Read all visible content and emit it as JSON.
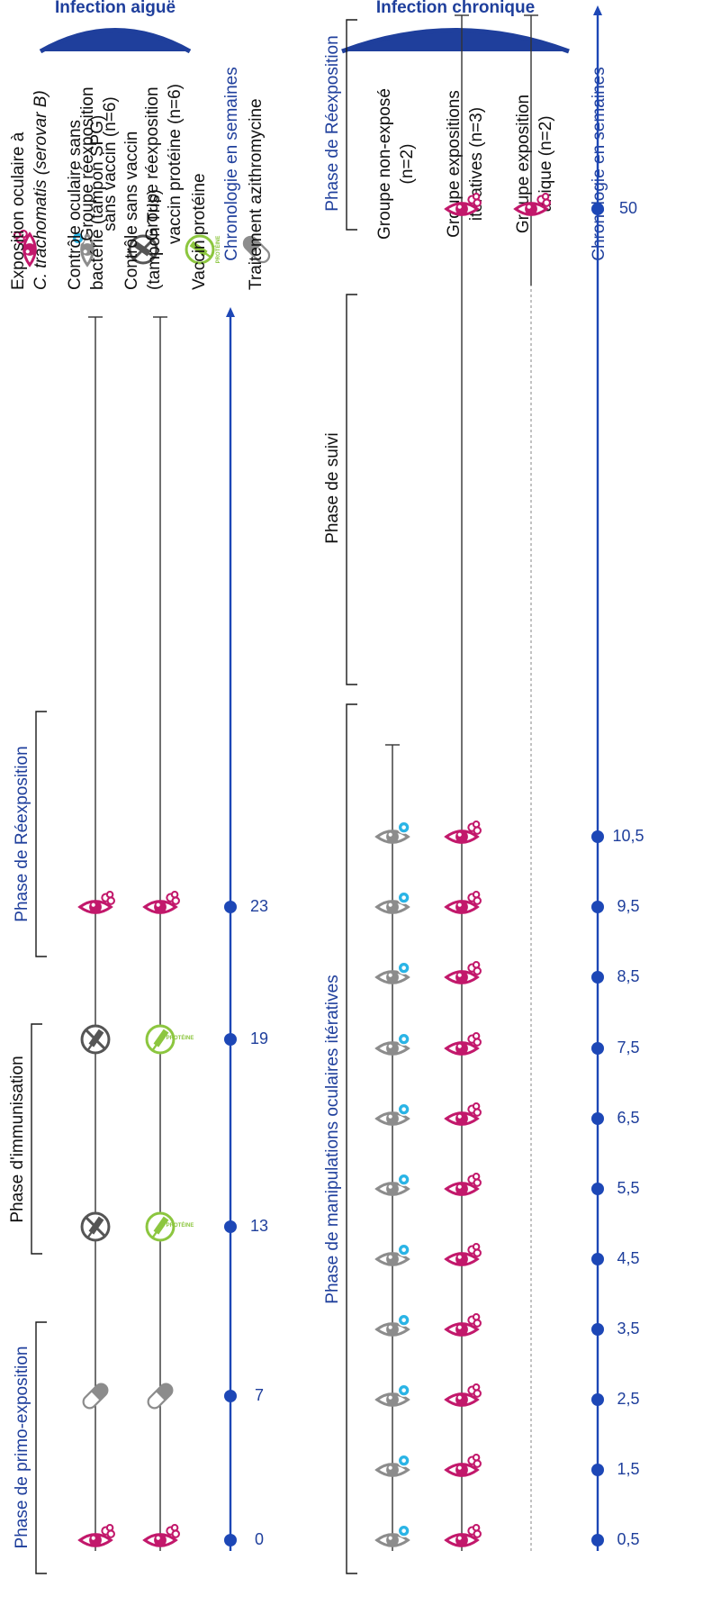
{
  "legend": {
    "items": [
      {
        "icon": "eye-chlamydia-icon",
        "lines": [
          "Exposition oculaire à",
          "C. trachomatis (serovar B)"
        ]
      },
      {
        "icon": "eye-control-icon",
        "lines": [
          "Contrôle oculaire sans",
          "bactérie (tampon SPG)"
        ]
      },
      {
        "icon": "no-vaccine-icon",
        "lines": [
          "Contrôle sans vaccin",
          "(tampon Tris)"
        ]
      },
      {
        "icon": "protein-vaccine-icon",
        "lines": [
          "Vaccin protéine"
        ]
      },
      {
        "icon": "pill-icon",
        "lines": [
          "Traitement azithromycine"
        ]
      }
    ],
    "protein_tag": "PROTÉINE"
  },
  "colors": {
    "blue": "#1f3f9c",
    "axis": "#1d47b6",
    "magenta": "#c2186b",
    "gray": "#8c8c8c",
    "dark_gray": "#555555",
    "green": "#8cc63f",
    "cyan": "#2ab4e6"
  },
  "acute": {
    "section_label": "Infection aiguë",
    "groups": [
      {
        "line1": "Groupe réexposition",
        "line2": "sans vaccin (n=6)"
      },
      {
        "line1": "Groupe réexposition",
        "line2": "vaccin protéine (n=6)"
      }
    ],
    "axis_label": "Chronologie en semaines",
    "ticks": [
      "0",
      "7",
      "13",
      "19",
      "23"
    ],
    "phases": [
      "Phase de primo-exposition",
      "Phase d'immunisation",
      "Phase de Réexposition"
    ]
  },
  "chronic": {
    "section_label": "Infection chronique",
    "groups": [
      {
        "line1": "Groupe non-exposé",
        "line2": "(n=2)"
      },
      {
        "line1": "Groupe expositions",
        "line2": "itératives (n=3)"
      },
      {
        "line1": "Groupe exposition",
        "line2": "unique (n=2)"
      }
    ],
    "axis_label": "Chronologie en semaines",
    "ticks": [
      "0,5",
      "1,5",
      "2,5",
      "3,5",
      "4,5",
      "5,5",
      "6,5",
      "7,5",
      "8,5",
      "9,5",
      "10,5",
      "50"
    ],
    "phases": [
      "Phase de manipulations oculaires itératives",
      "Phase de suivi",
      "Phase de Réexposition"
    ]
  }
}
